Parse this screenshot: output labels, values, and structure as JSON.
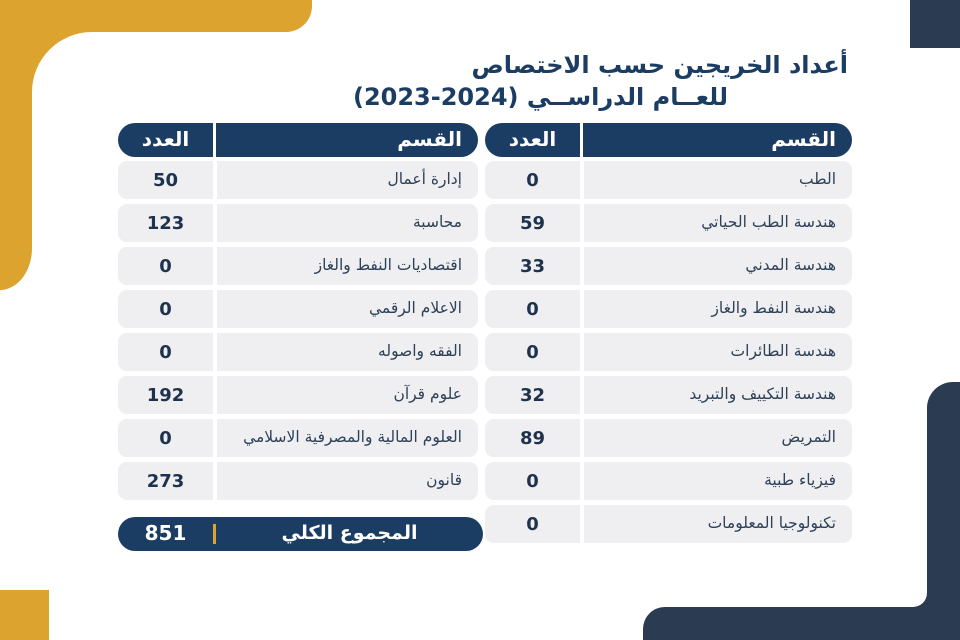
{
  "title": {
    "line1": "أعداد الخريجين حسب الاختصاص",
    "line2": "للعــام الدراســي (2024-2023)"
  },
  "columns": {
    "department": "القسم",
    "count": "العدد"
  },
  "tables": {
    "right": {
      "rows": [
        {
          "name": "الطب",
          "count": "0"
        },
        {
          "name": "هندسة الطب الحياتي",
          "count": "59"
        },
        {
          "name": "هندسة المدني",
          "count": "33"
        },
        {
          "name": "هندسة النفط والغاز",
          "count": "0"
        },
        {
          "name": "هندسة الطائرات",
          "count": "0"
        },
        {
          "name": "هندسة التكييف والتبريد",
          "count": "32"
        },
        {
          "name": "التمريض",
          "count": "89"
        },
        {
          "name": "فيزياء طبية",
          "count": "0"
        },
        {
          "name": "تكنولوجيا المعلومات",
          "count": "0"
        }
      ]
    },
    "left": {
      "rows": [
        {
          "name": "إدارة أعمال",
          "count": "50"
        },
        {
          "name": "محاسبة",
          "count": "123"
        },
        {
          "name": "اقتصاديات النفط والغاز",
          "count": "0"
        },
        {
          "name": "الاعلام الرقمي",
          "count": "0"
        },
        {
          "name": "الفقه واصوله",
          "count": "0"
        },
        {
          "name": "علوم قرآن",
          "count": "192"
        },
        {
          "name": "العلوم المالية والمصرفية الاسلامي",
          "count": "0"
        },
        {
          "name": "قانون",
          "count": "273"
        }
      ]
    }
  },
  "total": {
    "label": "المجموع الكلي",
    "value": "851"
  },
  "colors": {
    "navy": "#1c3d63",
    "decor_navy": "#2a3b52",
    "gold": "#dca42e",
    "row_bg": "#efeff1",
    "name_text": "#2e4158",
    "num_text": "#1e324e"
  }
}
